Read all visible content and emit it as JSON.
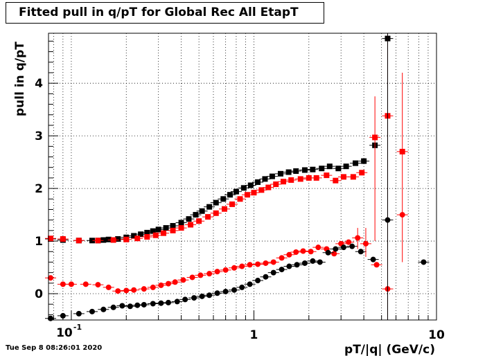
{
  "timestamp": "Tue Sep  8 08:26:01 2020",
  "chart_data": {
    "type": "scatter",
    "title": "Fitted pull in q/pT for Global Rec All EtapT",
    "xlabel": "pT/|q| (GeV/c)",
    "ylabel": "pull in q/pT",
    "xscale": "log",
    "xlim": [
      0.075,
      10
    ],
    "ylim": [
      -0.5,
      4.95
    ],
    "x_tick_labels": [
      {
        "value": 0.1,
        "base": "10",
        "exp": "-1"
      },
      {
        "value": 1,
        "text": "1"
      },
      {
        "value": 10,
        "text": "10"
      }
    ],
    "y_ticks": [
      0,
      1,
      2,
      3,
      4
    ],
    "grid": true,
    "legend": "none",
    "colors": {
      "black": "#000000",
      "red": "#ff0000"
    },
    "series": [
      {
        "marker": "square",
        "color": "#000000",
        "points": [
          [
            0.077,
            1.04
          ],
          [
            0.09,
            1.02
          ],
          [
            0.11,
            1.01
          ],
          [
            0.13,
            1.01
          ],
          [
            0.14,
            1.01
          ],
          [
            0.15,
            1.02
          ],
          [
            0.16,
            1.03
          ],
          [
            0.18,
            1.04
          ],
          [
            0.2,
            1.07
          ],
          [
            0.22,
            1.1
          ],
          [
            0.24,
            1.13
          ],
          [
            0.26,
            1.16
          ],
          [
            0.28,
            1.19
          ],
          [
            0.3,
            1.22
          ],
          [
            0.33,
            1.25
          ],
          [
            0.36,
            1.29
          ],
          [
            0.4,
            1.35
          ],
          [
            0.44,
            1.42
          ],
          [
            0.48,
            1.5
          ],
          [
            0.52,
            1.57
          ],
          [
            0.57,
            1.65
          ],
          [
            0.62,
            1.73
          ],
          [
            0.68,
            1.8
          ],
          [
            0.74,
            1.88
          ],
          [
            0.8,
            1.94
          ],
          [
            0.88,
            2.01
          ],
          [
            0.96,
            2.06
          ],
          [
            1.05,
            2.12
          ],
          [
            1.15,
            2.18
          ],
          [
            1.26,
            2.23
          ],
          [
            1.4,
            2.28
          ],
          [
            1.55,
            2.31
          ],
          [
            1.7,
            2.33
          ],
          [
            1.9,
            2.35
          ],
          [
            2.1,
            2.36
          ],
          [
            2.35,
            2.38
          ],
          [
            2.6,
            2.42
          ],
          [
            2.9,
            2.38
          ],
          [
            3.2,
            2.42
          ],
          [
            3.6,
            2.48
          ],
          [
            4.0,
            2.52
          ],
          [
            4.6,
            2.82
          ],
          [
            5.4,
            4.85
          ]
        ]
      },
      {
        "marker": "square",
        "color": "#ff0000",
        "points": [
          [
            0.077,
            1.05
          ],
          [
            0.09,
            1.04
          ],
          [
            0.11,
            1.01
          ],
          [
            0.14,
            1.01
          ],
          [
            0.17,
            1.02
          ],
          [
            0.2,
            1.03
          ],
          [
            0.23,
            1.05
          ],
          [
            0.26,
            1.08
          ],
          [
            0.29,
            1.11
          ],
          [
            0.32,
            1.15
          ],
          [
            0.36,
            1.2
          ],
          [
            0.4,
            1.25
          ],
          [
            0.45,
            1.31
          ],
          [
            0.5,
            1.38
          ],
          [
            0.56,
            1.46
          ],
          [
            0.62,
            1.53
          ],
          [
            0.69,
            1.61
          ],
          [
            0.76,
            1.7
          ],
          [
            0.84,
            1.8
          ],
          [
            0.92,
            1.88
          ],
          [
            1.0,
            1.92
          ],
          [
            1.1,
            1.97
          ],
          [
            1.2,
            2.02
          ],
          [
            1.32,
            2.08
          ],
          [
            1.45,
            2.13
          ],
          [
            1.6,
            2.16
          ],
          [
            1.8,
            2.18
          ],
          [
            2.0,
            2.2
          ],
          [
            2.2,
            2.2
          ],
          [
            2.5,
            2.25
          ],
          [
            2.8,
            2.15
          ],
          [
            3.1,
            2.22
          ],
          [
            3.5,
            2.22
          ],
          [
            3.9,
            2.3
          ],
          [
            4.6,
            2.97
          ],
          [
            5.4,
            3.38
          ],
          [
            6.5,
            2.7
          ]
        ]
      },
      {
        "marker": "circle",
        "color": "#ff0000",
        "points": [
          [
            0.077,
            0.3
          ],
          [
            0.09,
            0.18
          ],
          [
            0.1,
            0.18
          ],
          [
            0.12,
            0.18
          ],
          [
            0.14,
            0.17
          ],
          [
            0.16,
            0.12
          ],
          [
            0.18,
            0.05
          ],
          [
            0.2,
            0.06
          ],
          [
            0.22,
            0.07
          ],
          [
            0.25,
            0.09
          ],
          [
            0.28,
            0.12
          ],
          [
            0.31,
            0.16
          ],
          [
            0.34,
            0.19
          ],
          [
            0.37,
            0.22
          ],
          [
            0.41,
            0.26
          ],
          [
            0.46,
            0.31
          ],
          [
            0.51,
            0.35
          ],
          [
            0.57,
            0.38
          ],
          [
            0.63,
            0.42
          ],
          [
            0.7,
            0.45
          ],
          [
            0.78,
            0.49
          ],
          [
            0.86,
            0.52
          ],
          [
            0.95,
            0.55
          ],
          [
            1.05,
            0.56
          ],
          [
            1.16,
            0.58
          ],
          [
            1.28,
            0.6
          ],
          [
            1.42,
            0.68
          ],
          [
            1.56,
            0.74
          ],
          [
            1.7,
            0.79
          ],
          [
            1.86,
            0.81
          ],
          [
            2.05,
            0.8
          ],
          [
            2.25,
            0.88
          ],
          [
            2.5,
            0.85
          ],
          [
            2.75,
            0.76
          ],
          [
            3.0,
            0.95
          ],
          [
            3.3,
            0.98
          ],
          [
            3.7,
            1.06
          ],
          [
            4.1,
            0.95
          ],
          [
            4.7,
            0.55
          ],
          [
            5.4,
            0.09
          ],
          [
            6.5,
            1.5
          ]
        ]
      },
      {
        "marker": "circle",
        "color": "#000000",
        "points": [
          [
            0.077,
            -0.47
          ],
          [
            0.09,
            -0.42
          ],
          [
            0.11,
            -0.38
          ],
          [
            0.13,
            -0.34
          ],
          [
            0.15,
            -0.3
          ],
          [
            0.17,
            -0.26
          ],
          [
            0.19,
            -0.23
          ],
          [
            0.21,
            -0.24
          ],
          [
            0.23,
            -0.22
          ],
          [
            0.25,
            -0.21
          ],
          [
            0.28,
            -0.19
          ],
          [
            0.31,
            -0.18
          ],
          [
            0.34,
            -0.17
          ],
          [
            0.38,
            -0.15
          ],
          [
            0.42,
            -0.11
          ],
          [
            0.47,
            -0.08
          ],
          [
            0.52,
            -0.05
          ],
          [
            0.57,
            -0.03
          ],
          [
            0.63,
            0.01
          ],
          [
            0.7,
            0.04
          ],
          [
            0.78,
            0.07
          ],
          [
            0.86,
            0.12
          ],
          [
            0.95,
            0.18
          ],
          [
            1.05,
            0.25
          ],
          [
            1.16,
            0.32
          ],
          [
            1.28,
            0.4
          ],
          [
            1.42,
            0.46
          ],
          [
            1.56,
            0.52
          ],
          [
            1.72,
            0.55
          ],
          [
            1.9,
            0.58
          ],
          [
            2.1,
            0.62
          ],
          [
            2.3,
            0.6
          ],
          [
            2.55,
            0.78
          ],
          [
            2.8,
            0.85
          ],
          [
            3.1,
            0.88
          ],
          [
            3.45,
            0.9
          ],
          [
            3.85,
            0.8
          ],
          [
            4.5,
            0.65
          ],
          [
            5.4,
            1.4
          ],
          [
            8.5,
            0.6
          ]
        ]
      }
    ]
  }
}
